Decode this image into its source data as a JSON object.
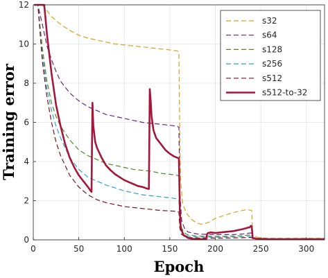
{
  "chart_data": {
    "type": "line",
    "title": "",
    "xlabel": "Epoch",
    "ylabel": "Training error",
    "xlim": [
      0,
      320
    ],
    "ylim": [
      0,
      12
    ],
    "xticks": [
      0,
      50,
      100,
      150,
      200,
      250,
      300
    ],
    "yticks": [
      0,
      2,
      4,
      6,
      8,
      10,
      12
    ],
    "grid": true,
    "legend_position": "top-right",
    "series": [
      {
        "name": "s32",
        "color": "#D9A21B",
        "style": "dashed",
        "x": [
          1,
          5,
          10,
          20,
          30,
          40,
          50,
          60,
          70,
          80,
          90,
          100,
          110,
          120,
          130,
          140,
          150,
          158,
          160,
          161,
          162,
          164,
          166,
          170,
          175,
          180,
          185,
          190,
          195,
          200,
          210,
          220,
          230,
          235,
          238,
          240,
          241,
          245,
          250,
          260,
          270,
          280,
          290,
          300,
          310,
          320
        ],
        "y": [
          12.0,
          12.0,
          12.0,
          11.4,
          11.0,
          10.7,
          10.45,
          10.3,
          10.2,
          10.1,
          10.0,
          9.95,
          9.9,
          9.85,
          9.8,
          9.75,
          9.7,
          9.65,
          9.6,
          5.0,
          3.0,
          1.9,
          1.6,
          1.25,
          1.0,
          0.85,
          0.8,
          0.85,
          0.95,
          1.1,
          1.25,
          1.4,
          1.5,
          1.55,
          1.52,
          1.5,
          0.3,
          0.15,
          0.1,
          0.08,
          0.08,
          0.08,
          0.08,
          0.08,
          0.08,
          0.08
        ]
      },
      {
        "name": "s64",
        "color": "#6B1F7E",
        "style": "dashed",
        "x": [
          1,
          5,
          10,
          15,
          20,
          25,
          30,
          40,
          50,
          60,
          70,
          80,
          90,
          100,
          110,
          120,
          130,
          140,
          150,
          158,
          160,
          161,
          163,
          166,
          170,
          180,
          190,
          200,
          210,
          220,
          230,
          238,
          240,
          241,
          245,
          250,
          260,
          280,
          300,
          320
        ],
        "y": [
          12.0,
          12.0,
          11.0,
          9.9,
          9.2,
          8.6,
          8.1,
          7.5,
          7.1,
          6.8,
          6.6,
          6.4,
          6.3,
          6.2,
          6.1,
          6.0,
          5.95,
          5.9,
          5.85,
          5.8,
          5.75,
          2.5,
          1.0,
          0.6,
          0.4,
          0.3,
          0.28,
          0.27,
          0.27,
          0.27,
          0.3,
          0.35,
          0.35,
          0.12,
          0.08,
          0.06,
          0.05,
          0.05,
          0.05,
          0.05
        ]
      },
      {
        "name": "s128",
        "color": "#4B8A1E",
        "style": "dashed",
        "x": [
          1,
          5,
          10,
          15,
          20,
          25,
          30,
          40,
          50,
          60,
          70,
          80,
          90,
          100,
          110,
          120,
          130,
          140,
          150,
          158,
          160,
          161,
          163,
          166,
          170,
          180,
          190,
          200,
          210,
          220,
          230,
          238,
          240,
          241,
          245,
          250,
          260,
          280,
          300,
          320
        ],
        "y": [
          12.0,
          12.0,
          9.8,
          8.1,
          7.0,
          6.3,
          5.8,
          5.1,
          4.6,
          4.3,
          4.1,
          3.9,
          3.8,
          3.7,
          3.6,
          3.55,
          3.5,
          3.4,
          3.35,
          3.3,
          3.25,
          1.4,
          0.6,
          0.35,
          0.25,
          0.2,
          0.18,
          0.18,
          0.18,
          0.2,
          0.22,
          0.25,
          0.25,
          0.1,
          0.06,
          0.05,
          0.04,
          0.04,
          0.04,
          0.04
        ]
      },
      {
        "name": "s256",
        "color": "#2FA0D5",
        "style": "dashed",
        "x": [
          1,
          5,
          10,
          15,
          20,
          25,
          30,
          40,
          50,
          60,
          70,
          80,
          90,
          100,
          110,
          120,
          130,
          140,
          150,
          158,
          160,
          161,
          163,
          166,
          170,
          180,
          190,
          200,
          210,
          220,
          230,
          238,
          240,
          241,
          245,
          250,
          260,
          280,
          300,
          320
        ],
        "y": [
          12.0,
          12.0,
          9.4,
          7.7,
          6.6,
          5.8,
          5.2,
          4.2,
          3.6,
          3.2,
          3.0,
          2.8,
          2.65,
          2.5,
          2.4,
          2.3,
          2.25,
          2.2,
          2.15,
          2.1,
          2.05,
          0.9,
          0.4,
          0.25,
          0.18,
          0.15,
          0.14,
          0.14,
          0.14,
          0.15,
          0.16,
          0.18,
          0.18,
          0.08,
          0.05,
          0.04,
          0.03,
          0.03,
          0.03,
          0.03
        ]
      },
      {
        "name": "s512",
        "color": "#7A1318",
        "style": "dashed",
        "x": [
          1,
          5,
          10,
          15,
          20,
          25,
          30,
          40,
          50,
          60,
          70,
          80,
          90,
          100,
          110,
          120,
          130,
          140,
          150,
          158,
          160,
          161,
          163,
          166,
          170,
          180,
          190,
          200,
          210,
          220,
          230,
          238,
          240,
          241,
          245,
          250,
          260,
          280,
          300,
          320
        ],
        "y": [
          12.0,
          12.0,
          9.1,
          7.3,
          6.0,
          5.0,
          4.3,
          3.3,
          2.7,
          2.3,
          2.05,
          1.9,
          1.8,
          1.7,
          1.65,
          1.6,
          1.55,
          1.5,
          1.48,
          1.45,
          1.42,
          0.6,
          0.28,
          0.18,
          0.12,
          0.1,
          0.09,
          0.09,
          0.09,
          0.1,
          0.11,
          0.12,
          0.12,
          0.06,
          0.04,
          0.03,
          0.02,
          0.02,
          0.02,
          0.02
        ]
      },
      {
        "name": "s512-to-32",
        "color": "#A3173A",
        "style": "solid",
        "x": [
          1,
          10,
          12,
          15,
          20,
          25,
          30,
          35,
          40,
          45,
          50,
          55,
          60,
          63,
          64,
          65,
          66,
          68,
          70,
          75,
          80,
          85,
          90,
          95,
          100,
          105,
          110,
          115,
          120,
          125,
          127,
          128,
          129,
          130,
          132,
          135,
          140,
          145,
          150,
          155,
          158,
          160,
          161,
          162,
          165,
          170,
          175,
          180,
          185,
          190,
          191,
          192,
          195,
          200,
          210,
          220,
          230,
          238,
          239,
          240,
          241,
          245,
          250,
          260,
          280,
          300,
          320
        ],
        "y": [
          12.0,
          12.0,
          12.2,
          10.5,
          8.5,
          6.9,
          5.8,
          4.9,
          4.2,
          3.7,
          3.3,
          3.0,
          2.7,
          2.5,
          2.45,
          7.0,
          5.8,
          5.0,
          4.7,
          4.2,
          3.8,
          3.55,
          3.35,
          3.2,
          3.05,
          2.95,
          2.85,
          2.75,
          2.7,
          2.62,
          2.6,
          7.7,
          7.1,
          6.3,
          5.6,
          5.2,
          4.9,
          4.6,
          4.4,
          4.25,
          4.2,
          4.15,
          1.6,
          0.6,
          0.25,
          0.1,
          0.05,
          0.04,
          0.04,
          0.04,
          0.3,
          0.35,
          0.38,
          0.35,
          0.4,
          0.45,
          0.55,
          0.65,
          0.72,
          0.7,
          0.1,
          0.06,
          0.05,
          0.04,
          0.04,
          0.04,
          0.04
        ]
      }
    ]
  }
}
